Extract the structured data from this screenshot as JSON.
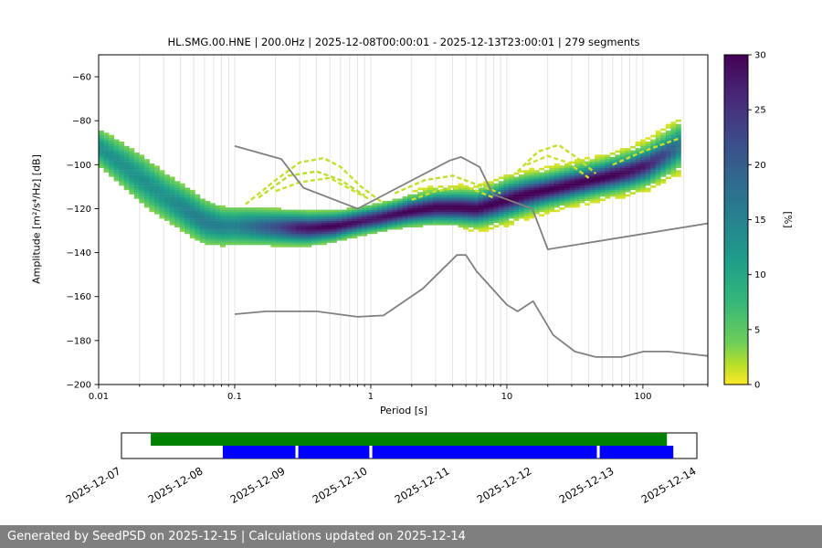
{
  "footer": {
    "text": "Generated by SeedPSD on 2025-12-15 | Calculations updated on 2025-12-14",
    "bg": "#7f7f7f",
    "fg": "#ffffff"
  },
  "chart_data": {
    "type": "heatmap",
    "title": "HL.SMG.00.HNE | 200.0Hz | 2025-12-08T00:00:01 - 2025-12-13T23:00:01 | 279 segments",
    "xlabel": "Period [s]",
    "ylabel": "Amplitude [m²/s⁴/Hz] [dB]",
    "xscale": "log",
    "xlim": [
      0.01,
      300
    ],
    "ylim": [
      -200,
      -50
    ],
    "x_major_ticks": [
      0.01,
      0.1,
      1,
      10,
      100
    ],
    "x_major_labels": [
      "0.01",
      "0.1",
      "1",
      "10",
      "100"
    ],
    "y_ticks": [
      -60,
      -80,
      -100,
      -120,
      -140,
      -160,
      -180,
      -200
    ],
    "grid": "vertical-log-minor",
    "colorbar": {
      "label": "[%]",
      "min": 0,
      "max": 30,
      "ticks": [
        0,
        5,
        10,
        15,
        20,
        25,
        30
      ],
      "colormap": "viridis_r"
    },
    "ppsd": {
      "bins": 115,
      "period_range": [
        0.01,
        190
      ],
      "ridge": [
        [
          0.01,
          -92
        ],
        [
          0.015,
          -100
        ],
        [
          0.02,
          -106
        ],
        [
          0.03,
          -114
        ],
        [
          0.045,
          -121
        ],
        [
          0.06,
          -126
        ],
        [
          0.08,
          -128
        ],
        [
          0.12,
          -128
        ],
        [
          0.2,
          -128.5
        ],
        [
          0.35,
          -129
        ],
        [
          0.55,
          -128
        ],
        [
          0.8,
          -126
        ],
        [
          1.2,
          -124
        ],
        [
          2,
          -121
        ],
        [
          3,
          -119.5
        ],
        [
          4.5,
          -119.5
        ],
        [
          6,
          -120
        ],
        [
          8,
          -118
        ],
        [
          10,
          -116
        ],
        [
          14,
          -113.5
        ],
        [
          20,
          -111.5
        ],
        [
          30,
          -109
        ],
        [
          50,
          -106
        ],
        [
          80,
          -103
        ],
        [
          110,
          -100
        ],
        [
          150,
          -95
        ],
        [
          190,
          -91
        ]
      ],
      "sigma": [
        [
          0.01,
          5
        ],
        [
          0.02,
          6.5
        ],
        [
          0.05,
          6
        ],
        [
          0.08,
          5
        ],
        [
          0.15,
          4.5
        ],
        [
          0.3,
          4
        ],
        [
          0.7,
          3.2
        ],
        [
          1.5,
          3.2
        ],
        [
          3,
          3.8
        ],
        [
          6,
          4
        ],
        [
          10,
          4.5
        ],
        [
          20,
          4
        ],
        [
          50,
          4
        ],
        [
          100,
          4.5
        ],
        [
          150,
          5
        ],
        [
          190,
          5.5
        ]
      ],
      "peak_percent": [
        [
          0.01,
          13
        ],
        [
          0.03,
          13
        ],
        [
          0.06,
          16
        ],
        [
          0.1,
          15
        ],
        [
          0.2,
          22
        ],
        [
          0.3,
          28
        ],
        [
          0.5,
          30
        ],
        [
          1,
          28
        ],
        [
          2,
          30
        ],
        [
          5,
          30
        ],
        [
          10,
          30
        ],
        [
          30,
          30
        ],
        [
          60,
          30
        ],
        [
          100,
          28
        ],
        [
          150,
          22
        ],
        [
          190,
          16
        ]
      ],
      "secondary_branches": [
        {
          "percent": 1.5,
          "points": [
            [
              0.12,
              -118
            ],
            [
              0.2,
              -107
            ],
            [
              0.3,
              -99
            ],
            [
              0.45,
              -97
            ],
            [
              0.6,
              -101
            ],
            [
              0.85,
              -110
            ],
            [
              1.2,
              -117
            ]
          ]
        },
        {
          "percent": 1.8,
          "points": [
            [
              0.15,
              -115
            ],
            [
              0.25,
              -105
            ],
            [
              0.4,
              -103
            ],
            [
              0.6,
              -107
            ],
            [
              0.9,
              -114
            ]
          ]
        },
        {
          "percent": 1.4,
          "points": [
            [
              0.2,
              -112
            ],
            [
              0.3,
              -108
            ],
            [
              0.5,
              -106
            ],
            [
              0.7,
              -111
            ],
            [
              1.0,
              -116
            ]
          ]
        },
        {
          "percent": 1.6,
          "points": [
            [
              1.5,
              -113
            ],
            [
              2.5,
              -107
            ],
            [
              4,
              -105
            ],
            [
              6,
              -109
            ],
            [
              9,
              -113
            ]
          ]
        },
        {
          "percent": 1.3,
          "points": [
            [
              2,
              -116
            ],
            [
              3,
              -112
            ],
            [
              5,
              -110
            ],
            [
              8,
              -115
            ]
          ]
        },
        {
          "percent": 1.5,
          "points": [
            [
              12,
              -103
            ],
            [
              17,
              -94
            ],
            [
              24,
              -91
            ],
            [
              33,
              -97
            ],
            [
              45,
              -104
            ]
          ]
        },
        {
          "percent": 1.3,
          "points": [
            [
              14,
              -100
            ],
            [
              20,
              -96
            ],
            [
              28,
              -99
            ],
            [
              40,
              -106
            ]
          ]
        },
        {
          "percent": 1.4,
          "points": [
            [
              60,
              -100
            ],
            [
              100,
              -94
            ],
            [
              150,
              -90
            ],
            [
              185,
              -88
            ]
          ]
        }
      ]
    },
    "noise_models": {
      "color": "#808080",
      "high": [
        [
          0.1,
          -91.5
        ],
        [
          0.22,
          -97.4
        ],
        [
          0.32,
          -110.5
        ],
        [
          0.8,
          -120.0
        ],
        [
          3.8,
          -98.1
        ],
        [
          4.6,
          -96.5
        ],
        [
          6.3,
          -101.0
        ],
        [
          7.9,
          -113.5
        ],
        [
          15.4,
          -120.0
        ],
        [
          20.0,
          -138.5
        ],
        [
          300,
          -126.7
        ]
      ],
      "low": [
        [
          0.1,
          -168.0
        ],
        [
          0.17,
          -166.7
        ],
        [
          0.4,
          -166.7
        ],
        [
          0.8,
          -169.2
        ],
        [
          1.24,
          -168.6
        ],
        [
          2.4,
          -156.5
        ],
        [
          4.3,
          -141.1
        ],
        [
          5.0,
          -141.1
        ],
        [
          6.0,
          -148.5
        ],
        [
          10.0,
          -163.7
        ],
        [
          12.0,
          -166.7
        ],
        [
          15.6,
          -162.1
        ],
        [
          21.9,
          -177.5
        ],
        [
          31.6,
          -185.0
        ],
        [
          45.0,
          -187.5
        ],
        [
          70.0,
          -187.5
        ],
        [
          101.0,
          -185.0
        ],
        [
          154.0,
          -185.0
        ],
        [
          300,
          -187.0
        ]
      ]
    }
  },
  "timeline": {
    "dates": [
      "2025-12-07",
      "2025-12-08",
      "2025-12-09",
      "2025-12-10",
      "2025-12-11",
      "2025-12-12",
      "2025-12-13",
      "2025-12-14"
    ],
    "availability": {
      "color": "#008000",
      "segments": [
        [
          0.051,
          0.948
        ]
      ]
    },
    "coverage": {
      "color": "#0000ff",
      "segments": [
        [
          0.176,
          0.3023
        ],
        [
          0.3073,
          0.4308
        ],
        [
          0.4358,
          0.8261
        ],
        [
          0.8311,
          0.959
        ]
      ]
    }
  }
}
